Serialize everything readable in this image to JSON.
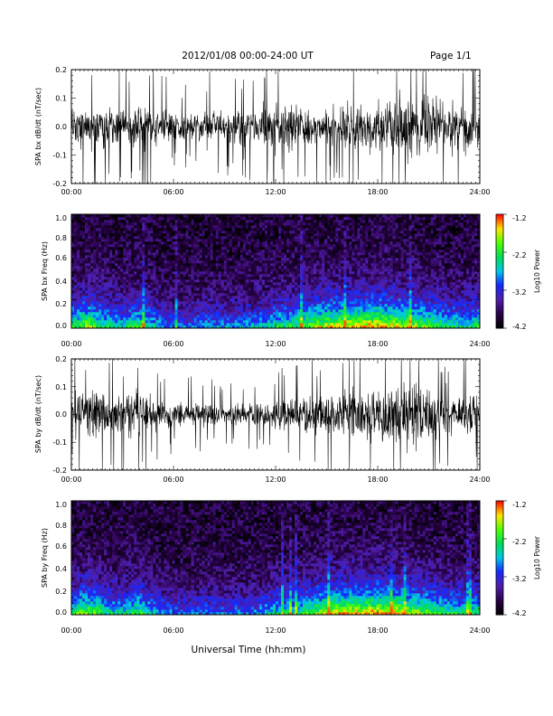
{
  "header": {
    "date_range": "2012/01/08  00:00-24:00 UT",
    "page": "Page 1/1"
  },
  "footer": {
    "xlabel": "Universal Time (hh:mm)"
  },
  "chart_data": [
    {
      "type": "line",
      "ylabel": "SPA bx dB/dt (nT/sec)",
      "xlim": [
        0,
        24
      ],
      "ylim": [
        -0.2,
        0.2
      ],
      "x_tick_labels": [
        "00:00",
        "06:00",
        "12:00",
        "18:00",
        "24:00"
      ],
      "y_tick_labels": [
        "0.2",
        "0.1",
        "0.0",
        "-0.1",
        "-0.2"
      ],
      "envelope": {
        "hours": [
          0,
          1,
          2,
          3,
          4,
          5,
          6,
          7,
          8,
          9,
          10,
          11,
          12,
          13,
          14,
          15,
          16,
          17,
          18,
          19,
          20,
          21,
          22,
          23,
          24
        ],
        "amplitude": [
          0.12,
          0.16,
          0.12,
          0.11,
          0.14,
          0.1,
          0.08,
          0.08,
          0.1,
          0.1,
          0.09,
          0.1,
          0.14,
          0.13,
          0.11,
          0.12,
          0.14,
          0.14,
          0.16,
          0.18,
          0.2,
          0.17,
          0.15,
          0.13,
          0.16
        ]
      }
    },
    {
      "type": "heatmap",
      "ylabel": "SPA bx Freq (Hz)",
      "xlim": [
        0,
        24
      ],
      "ylim": [
        0,
        1.0
      ],
      "x_tick_labels": [
        "00:00",
        "06:00",
        "12:00",
        "18:00",
        "24:00"
      ],
      "y_tick_labels": [
        "1.0",
        "0.8",
        "0.6",
        "0.4",
        "0.2",
        "0.0"
      ],
      "colorbar": {
        "label": "Log10 Power",
        "range": [
          -4.2,
          -1.2
        ],
        "tick_labels": [
          "-1.2",
          "-2.2",
          "-3.2",
          "-4.2"
        ]
      },
      "activity": {
        "hours": [
          0,
          1,
          2,
          3,
          4,
          5,
          6,
          7,
          8,
          9,
          10,
          11,
          12,
          13,
          14,
          15,
          16,
          17,
          18,
          19,
          20,
          21,
          22,
          23,
          24
        ],
        "level": [
          0.6,
          0.75,
          0.55,
          0.5,
          0.65,
          0.45,
          0.35,
          0.35,
          0.4,
          0.4,
          0.4,
          0.45,
          0.55,
          0.6,
          0.7,
          0.8,
          0.85,
          0.85,
          0.9,
          0.85,
          0.75,
          0.7,
          0.6,
          0.55,
          0.6
        ]
      }
    },
    {
      "type": "line",
      "ylabel": "SPA by dB/dt (nT/sec)",
      "xlim": [
        0,
        24
      ],
      "ylim": [
        -0.2,
        0.2
      ],
      "x_tick_labels": [
        "00:00",
        "06:00",
        "12:00",
        "18:00",
        "24:00"
      ],
      "y_tick_labels": [
        "0.2",
        "0.1",
        "0.0",
        "-0.1",
        "-0.2"
      ],
      "envelope": {
        "hours": [
          0,
          1,
          2,
          3,
          4,
          5,
          6,
          7,
          8,
          9,
          10,
          11,
          12,
          13,
          14,
          15,
          16,
          17,
          18,
          19,
          20,
          21,
          22,
          23,
          24
        ],
        "amplitude": [
          0.1,
          0.15,
          0.12,
          0.12,
          0.14,
          0.09,
          0.07,
          0.07,
          0.07,
          0.06,
          0.06,
          0.07,
          0.1,
          0.1,
          0.11,
          0.13,
          0.15,
          0.15,
          0.17,
          0.19,
          0.2,
          0.16,
          0.13,
          0.12,
          0.13
        ]
      }
    },
    {
      "type": "heatmap",
      "ylabel": "SPA by Freq (Hz)",
      "xlim": [
        0,
        24
      ],
      "ylim": [
        0,
        1.0
      ],
      "x_tick_labels": [
        "00:00",
        "06:00",
        "12:00",
        "18:00",
        "24:00"
      ],
      "y_tick_labels": [
        "1.0",
        "0.8",
        "0.6",
        "0.4",
        "0.2",
        "0.0"
      ],
      "colorbar": {
        "label": "Log10 Power",
        "range": [
          -4.2,
          -1.2
        ],
        "tick_labels": [
          "-1.2",
          "-2.2",
          "-3.2",
          "-4.2"
        ]
      },
      "activity": {
        "hours": [
          0,
          1,
          2,
          3,
          4,
          5,
          6,
          7,
          8,
          9,
          10,
          11,
          12,
          13,
          14,
          15,
          16,
          17,
          18,
          19,
          20,
          21,
          22,
          23,
          24
        ],
        "level": [
          0.6,
          0.75,
          0.55,
          0.5,
          0.65,
          0.45,
          0.35,
          0.35,
          0.35,
          0.35,
          0.35,
          0.4,
          0.5,
          0.55,
          0.65,
          0.8,
          0.85,
          0.85,
          0.9,
          0.85,
          0.75,
          0.7,
          0.6,
          0.55,
          0.6
        ]
      }
    }
  ]
}
